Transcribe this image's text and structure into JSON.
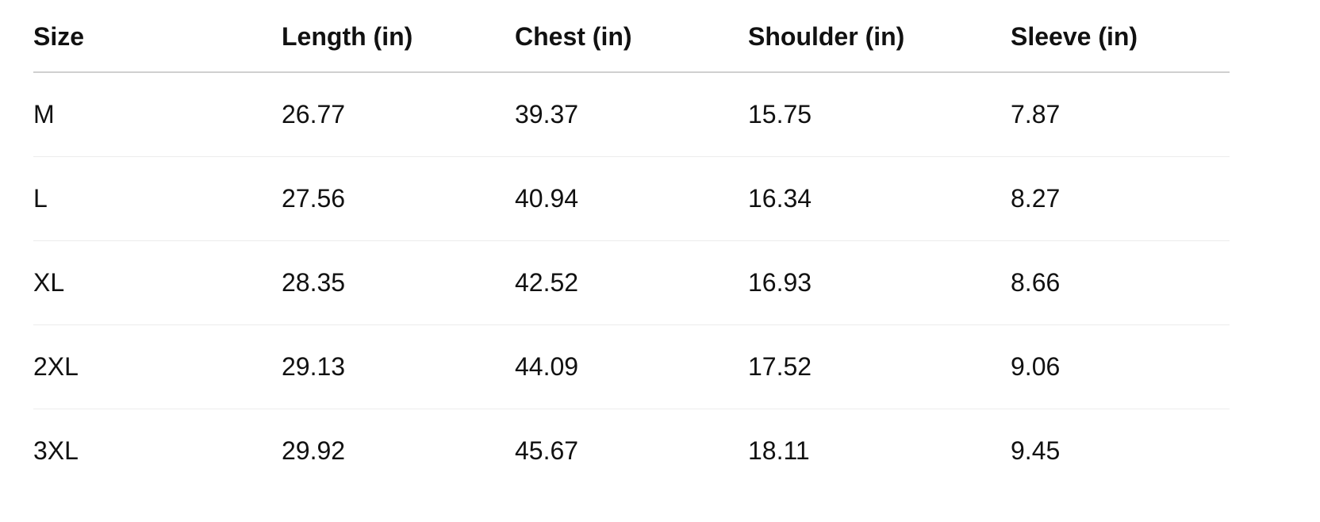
{
  "table": {
    "header": [
      "Size",
      "Length (in)",
      "Chest (in)",
      "Shoulder (in)",
      "Sleeve (in)"
    ],
    "rows": [
      [
        "M",
        "26.77",
        "39.37",
        "15.75",
        "7.87"
      ],
      [
        "L",
        "27.56",
        "40.94",
        "16.34",
        "8.27"
      ],
      [
        "XL",
        "28.35",
        "42.52",
        "16.93",
        "8.66"
      ],
      [
        "2XL",
        "29.13",
        "44.09",
        "17.52",
        "9.06"
      ],
      [
        "3XL",
        "29.92",
        "45.67",
        "18.11",
        "9.45"
      ]
    ]
  }
}
